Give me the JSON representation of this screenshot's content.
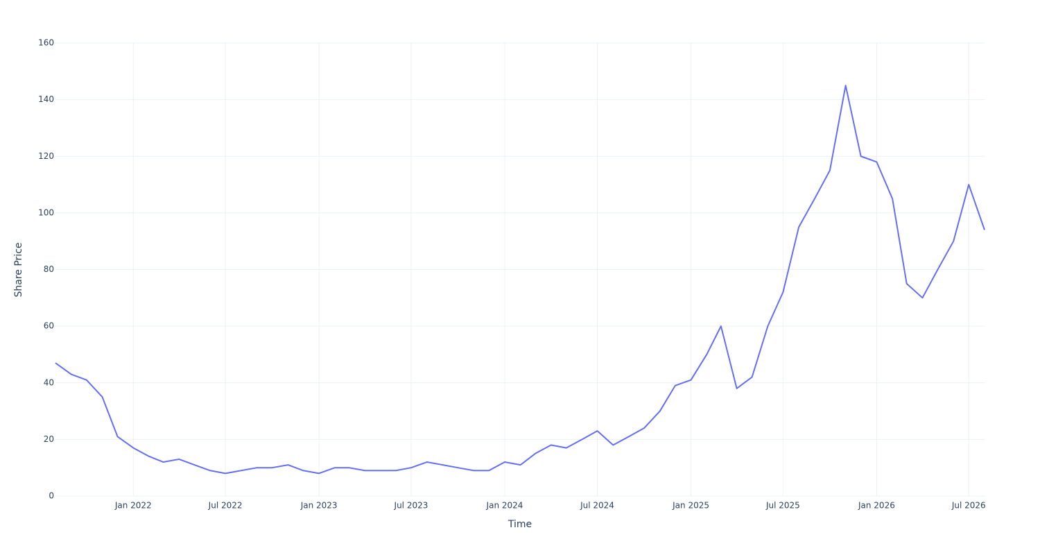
{
  "chart_data": {
    "type": "line",
    "x_label": "Time",
    "y_label": "Share Price",
    "x": [
      "2021-08",
      "2021-09",
      "2021-10",
      "2021-11",
      "2021-12",
      "2022-01",
      "2022-02",
      "2022-03",
      "2022-04",
      "2022-05",
      "2022-06",
      "2022-07",
      "2022-08",
      "2022-09",
      "2022-10",
      "2022-11",
      "2022-12",
      "2023-01",
      "2023-02",
      "2023-03",
      "2023-04",
      "2023-05",
      "2023-06",
      "2023-07",
      "2023-08",
      "2023-09",
      "2023-10",
      "2023-11",
      "2023-12",
      "2024-01",
      "2024-02",
      "2024-03",
      "2024-04",
      "2024-05",
      "2024-06",
      "2024-07",
      "2024-08",
      "2024-09",
      "2024-10",
      "2024-11",
      "2024-12",
      "2025-01",
      "2025-02",
      "2025-03",
      "2025-04",
      "2025-05",
      "2025-06",
      "2025-07",
      "2025-08",
      "2025-09",
      "2025-10",
      "2025-11",
      "2025-12",
      "2026-01",
      "2026-02",
      "2026-03",
      "2026-04",
      "2026-05",
      "2026-06",
      "2026-07",
      "2026-08"
    ],
    "series": [
      {
        "color": "#636efa",
        "values": [
          47,
          43,
          41,
          35,
          21,
          17,
          14,
          12,
          13,
          11,
          9,
          8,
          9,
          10,
          10,
          11,
          9,
          8,
          10,
          10,
          9,
          9,
          9,
          10,
          12,
          11,
          10,
          9,
          9,
          12,
          11,
          15,
          18,
          17,
          20,
          23,
          18,
          21,
          24,
          30,
          39,
          41,
          50,
          60,
          38,
          42,
          60,
          72,
          95,
          105,
          115,
          145,
          120,
          118,
          105,
          75,
          70,
          80,
          90,
          110,
          94
        ]
      }
    ],
    "xlim": [
      "2021-08",
      "2026-08"
    ],
    "xticks": [
      {
        "value": "2022-01",
        "label": "Jan 2022"
      },
      {
        "value": "2022-07",
        "label": "Jul 2022"
      },
      {
        "value": "2023-01",
        "label": "Jan 2023"
      },
      {
        "value": "2023-07",
        "label": "Jul 2023"
      },
      {
        "value": "2024-01",
        "label": "Jan 2024"
      },
      {
        "value": "2024-07",
        "label": "Jul 2024"
      },
      {
        "value": "2025-01",
        "label": "Jan 2025"
      },
      {
        "value": "2025-07",
        "label": "Jul 2025"
      },
      {
        "value": "2026-01",
        "label": "Jan 2026"
      },
      {
        "value": "2026-07",
        "label": "Jul 2026"
      }
    ],
    "ylim": [
      0,
      160
    ],
    "yticks": [
      0,
      20,
      40,
      60,
      80,
      100,
      120,
      140,
      160
    ],
    "grid": true
  }
}
